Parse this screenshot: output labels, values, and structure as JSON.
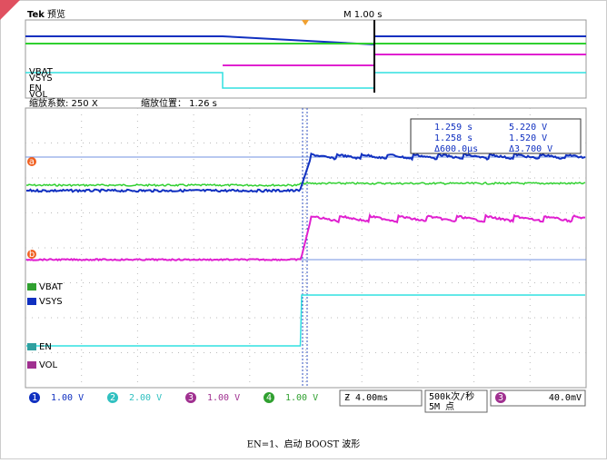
{
  "header": {
    "brand": "Tek",
    "mode": "预览",
    "timebase": "M 1.00 s"
  },
  "overview_labels": [
    "VBAT",
    "VSYS",
    "EN",
    "VOL"
  ],
  "zoom": {
    "factor": "缩放系数: 250 X",
    "position": "缩放位置： 1.26 s"
  },
  "cursor": {
    "t1": "1.259 s",
    "v1": "5.220 V",
    "t2": "1.258 s",
    "v2": "1.520 V",
    "dt": "Δ600.0μs",
    "dv": "Δ3.700 V",
    "marker_a": "a",
    "marker_b": "b"
  },
  "channels": [
    {
      "number": "1",
      "name": "VSYS",
      "scale": "1.00 V"
    },
    {
      "number": "2",
      "name": "EN",
      "scale": "2.00 V"
    },
    {
      "number": "3",
      "name": "VOL",
      "scale": "1.00 V"
    },
    {
      "number": "4",
      "name": "VBAT",
      "scale": "1.00 V"
    }
  ],
  "status": {
    "horizontal": "Ƶ 4.00ms",
    "rate": "500k次/秒",
    "points": "5M 点",
    "trigger_channel": "3",
    "trigger_level": "40.0mV"
  },
  "caption": "EN=1、启动 BOOST 波形"
}
